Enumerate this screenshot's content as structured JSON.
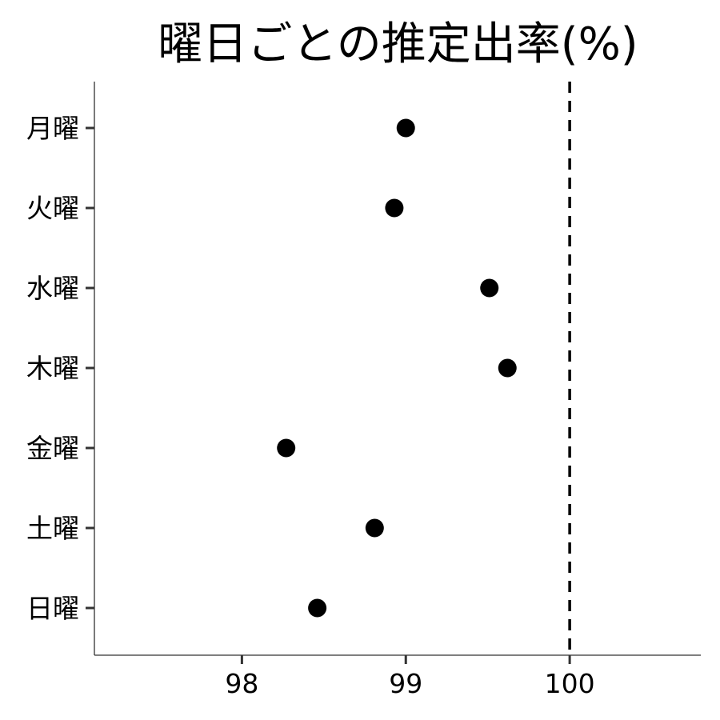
{
  "chart_data": {
    "type": "scatter",
    "title": "曜日ごとの推定出率(%)",
    "xlabel": "",
    "ylabel": "",
    "categories": [
      "月曜",
      "火曜",
      "水曜",
      "木曜",
      "金曜",
      "土曜",
      "日曜"
    ],
    "values": [
      99.0,
      98.93,
      99.51,
      99.62,
      98.27,
      98.81,
      98.46
    ],
    "xlim": [
      97.1,
      100.8
    ],
    "xticks": [
      98,
      99,
      100
    ],
    "xtick_labels": [
      "98",
      "99",
      "100"
    ],
    "reference_line": {
      "x": 100,
      "style": "dashed"
    },
    "grid": false,
    "marker_color": "#000000"
  }
}
